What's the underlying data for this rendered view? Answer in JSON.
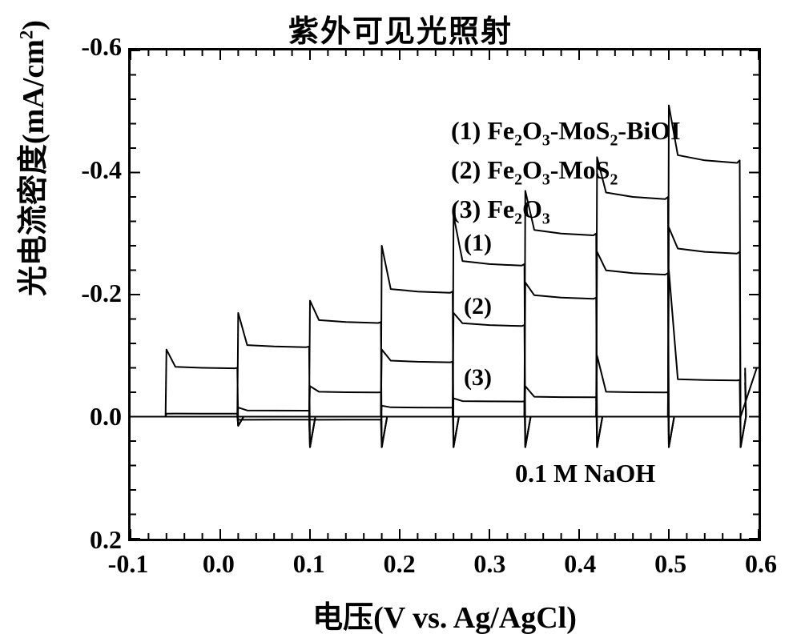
{
  "title": "紫外可见光照射",
  "xlabel_prefix": "电压",
  "xlabel_suffix": "(V vs. Ag/AgCl)",
  "ylabel_prefix": "光电流密度",
  "ylabel_suffix": "(mA/cm",
  "ylabel_sup": "2",
  "ylabel_close": ")",
  "legend": {
    "items": [
      "(1) Fe₂O₃-MoS₂-BiOI",
      "(2) Fe₂O₃-MoS₂",
      "(3) Fe₂O₃"
    ]
  },
  "series_labels": {
    "s1": "(1)",
    "s2": "(2)",
    "s3": "(3)"
  },
  "electrolyte_note": "0.1 M NaOH",
  "chart": {
    "type": "line",
    "background_color": "#ffffff",
    "line_color": "#000000",
    "line_width": 2.0,
    "axis_line_width": 3,
    "font_family": "Times New Roman / SimSun",
    "tick_fontsize_pt": 24,
    "label_fontsize_pt": 28,
    "title_fontsize_pt": 28,
    "legend_fontsize_pt": 24,
    "xlim": [
      -0.1,
      0.6
    ],
    "ylim_display_top": -0.6,
    "ylim_display_bottom": 0.2,
    "yticks": [
      -0.6,
      -0.4,
      -0.2,
      0.0,
      0.2
    ],
    "xticks": [
      -0.1,
      0.0,
      0.1,
      0.2,
      0.3,
      0.4,
      0.5,
      0.6
    ],
    "ytick_labels": [
      "-0.6",
      "-0.4",
      "-0.2",
      "0.0",
      "0.2"
    ],
    "xtick_labels": [
      "-0.1",
      "0.0",
      "0.1",
      "0.2",
      "0.3",
      "0.4",
      "0.5",
      "0.6"
    ],
    "tick_len_major": 12,
    "tick_len_minor": 7,
    "x_minor_step": 0.02,
    "y_minor_step": 0.04,
    "chop_segments": [
      {
        "x_on": -0.06,
        "x_off": 0.02
      },
      {
        "x_on": 0.02,
        "x_off": 0.1
      },
      {
        "x_on": 0.1,
        "x_off": 0.18
      },
      {
        "x_on": 0.18,
        "x_off": 0.26
      },
      {
        "x_on": 0.26,
        "x_off": 0.34
      },
      {
        "x_on": 0.34,
        "x_off": 0.42
      },
      {
        "x_on": 0.42,
        "x_off": 0.5
      },
      {
        "x_on": 0.5,
        "x_off": 0.58
      }
    ],
    "series": [
      {
        "name": "(1) Fe2O3-MoS2-BiOI",
        "on_values": [
          -0.08,
          -0.115,
          -0.155,
          -0.205,
          -0.25,
          -0.3,
          -0.36,
          -0.42
        ],
        "spike_values": [
          -0.11,
          -0.17,
          -0.19,
          -0.28,
          -0.33,
          -0.37,
          -0.425,
          -0.51
        ],
        "dark_base": [
          0.0,
          0.0,
          0.0,
          0.0,
          0.0,
          0.0,
          0.0,
          0.0
        ]
      },
      {
        "name": "(2) Fe2O3-MoS2",
        "on_values": [
          -0.005,
          -0.01,
          -0.04,
          -0.09,
          -0.15,
          -0.195,
          -0.235,
          -0.27
        ],
        "spike_values": [
          -0.005,
          -0.015,
          -0.05,
          -0.11,
          -0.17,
          -0.22,
          -0.27,
          -0.31
        ],
        "dark_base": [
          0.0,
          0.0,
          0.0,
          0.0,
          0.0,
          0.0,
          0.0,
          0.0
        ]
      },
      {
        "name": "(3) Fe2O3",
        "on_values": [
          0.0,
          0.005,
          0.005,
          -0.015,
          -0.025,
          -0.032,
          -0.04,
          -0.06
        ],
        "spike_values": [
          0.0,
          0.005,
          0.005,
          -0.018,
          -0.03,
          -0.05,
          -0.1,
          -0.24
        ],
        "dark_base": [
          0.0,
          0.0,
          0.0,
          0.0,
          0.0,
          0.0,
          0.0,
          0.0
        ]
      }
    ],
    "dark_current_end_value": -0.08,
    "off_undershoot": 0.05
  }
}
